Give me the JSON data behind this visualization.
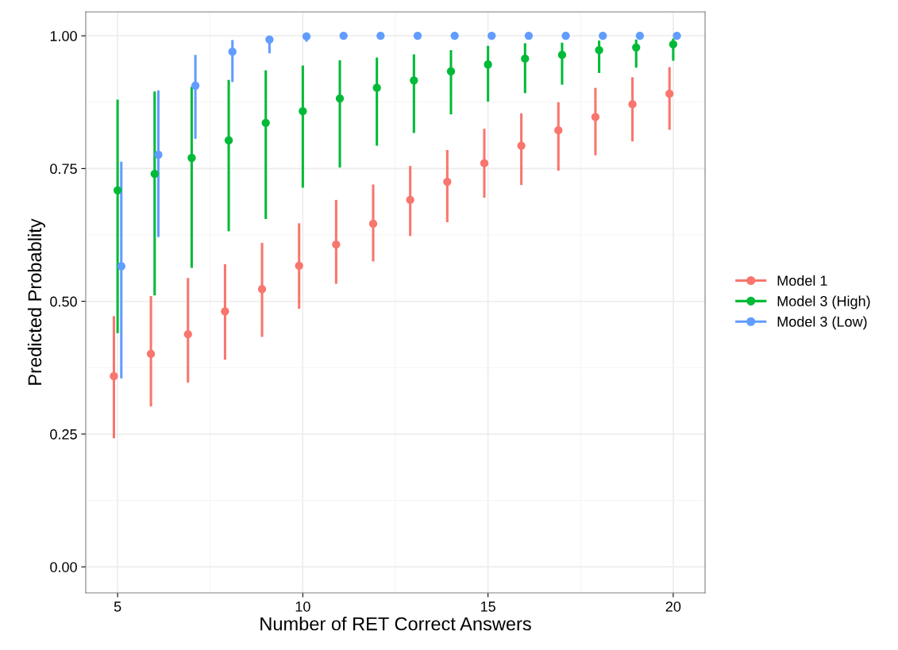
{
  "chart_data": {
    "type": "scatter",
    "xlabel": "Number of RET Correct Answers",
    "ylabel": "Predicted Probablity",
    "xlim": [
      4.14,
      20.86
    ],
    "ylim": [
      -0.049,
      1.045
    ],
    "xticks": [
      5,
      10,
      15,
      20
    ],
    "yticks": [
      {
        "value": 0,
        "label": "0.00"
      },
      {
        "value": 0.25,
        "label": "0.25"
      },
      {
        "value": 0.5,
        "label": "0.50"
      },
      {
        "value": 0.75,
        "label": "0.75"
      },
      {
        "value": 1,
        "label": "1.00"
      }
    ],
    "grid": true,
    "legend": "right",
    "marker": "circle",
    "series": [
      {
        "name": "Model 1",
        "color": "#f8766d",
        "x": [
          4.9,
          5.9,
          6.9,
          7.9,
          8.9,
          9.9,
          10.9,
          11.9,
          12.9,
          13.9,
          14.9,
          15.9,
          16.9,
          17.9,
          18.9,
          19.9
        ],
        "values": [
          0.359,
          0.401,
          0.438,
          0.481,
          0.523,
          0.567,
          0.607,
          0.646,
          0.691,
          0.725,
          0.76,
          0.793,
          0.822,
          0.847,
          0.871,
          0.891
        ],
        "errors": [
          [
            0.242,
            0.472
          ],
          [
            0.302,
            0.51
          ],
          [
            0.347,
            0.544
          ],
          [
            0.39,
            0.57
          ],
          [
            0.433,
            0.61
          ],
          [
            0.486,
            0.647
          ],
          [
            0.533,
            0.691
          ],
          [
            0.575,
            0.72
          ],
          [
            0.623,
            0.755
          ],
          [
            0.649,
            0.785
          ],
          [
            0.695,
            0.825
          ],
          [
            0.719,
            0.854
          ],
          [
            0.746,
            0.875
          ],
          [
            0.775,
            0.902
          ],
          [
            0.801,
            0.922
          ],
          [
            0.823,
            0.941
          ]
        ]
      },
      {
        "name": "Model 3 (High)",
        "color": "#00ba38",
        "x": [
          5,
          6,
          7,
          8,
          9,
          10,
          11,
          12,
          13,
          14,
          15,
          16,
          17,
          18,
          19,
          20
        ],
        "values": [
          0.709,
          0.74,
          0.77,
          0.803,
          0.836,
          0.858,
          0.882,
          0.902,
          0.916,
          0.933,
          0.946,
          0.957,
          0.964,
          0.973,
          0.978,
          0.984
        ],
        "errors": [
          [
            0.44,
            0.88
          ],
          [
            0.511,
            0.895
          ],
          [
            0.563,
            0.904
          ],
          [
            0.632,
            0.917
          ],
          [
            0.655,
            0.935
          ],
          [
            0.714,
            0.944
          ],
          [
            0.752,
            0.954
          ],
          [
            0.793,
            0.959
          ],
          [
            0.817,
            0.965
          ],
          [
            0.852,
            0.973
          ],
          [
            0.876,
            0.981
          ],
          [
            0.892,
            0.986
          ],
          [
            0.908,
            0.987
          ],
          [
            0.93,
            0.991
          ],
          [
            0.94,
            0.993
          ],
          [
            0.953,
            0.995
          ]
        ]
      },
      {
        "name": "Model 3 (Low)",
        "color": "#619cff",
        "x": [
          5.1,
          6.1,
          7.1,
          8.1,
          9.1,
          10.1,
          11.1,
          12.1,
          13.1,
          14.1,
          15.1,
          16.1,
          17.1,
          18.1,
          19.1,
          20.1
        ],
        "values": [
          0.566,
          0.776,
          0.906,
          0.97,
          0.993,
          0.999,
          1.0,
          1.0,
          1.0,
          1.0,
          1.0,
          1.0,
          1.0,
          1.0,
          1.0,
          1.0
        ],
        "errors": [
          [
            0.355,
            0.763
          ],
          [
            0.621,
            0.897
          ],
          [
            0.806,
            0.964
          ],
          [
            0.913,
            0.992
          ],
          [
            0.967,
            0.998
          ],
          [
            0.989,
            1.0
          ],
          null,
          null,
          null,
          null,
          null,
          null,
          null,
          null,
          null,
          null
        ]
      }
    ]
  }
}
